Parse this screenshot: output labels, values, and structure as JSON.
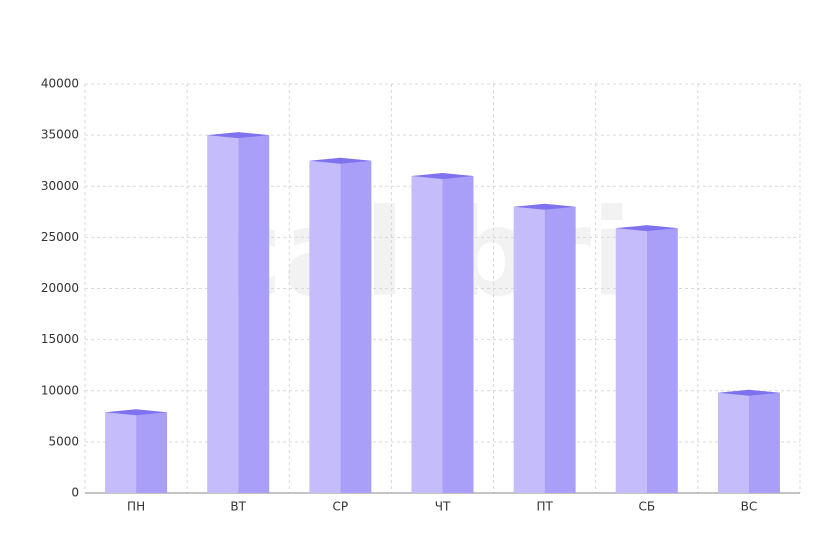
{
  "chart_data": {
    "type": "bar",
    "watermark": "calibri",
    "categories": [
      "ПН",
      "ВТ",
      "СР",
      "ЧТ",
      "ПТ",
      "СБ",
      "ВС"
    ],
    "values": [
      7900,
      35000,
      32500,
      31000,
      28000,
      25900,
      9800
    ],
    "colors": {
      "front": "#c4bcfb",
      "side": "#a99ff8",
      "top": "#7f72ee"
    },
    "ylim": [
      0,
      40000
    ],
    "yticks": [
      0,
      5000,
      10000,
      15000,
      20000,
      25000,
      30000,
      35000,
      40000
    ],
    "grid": true
  }
}
